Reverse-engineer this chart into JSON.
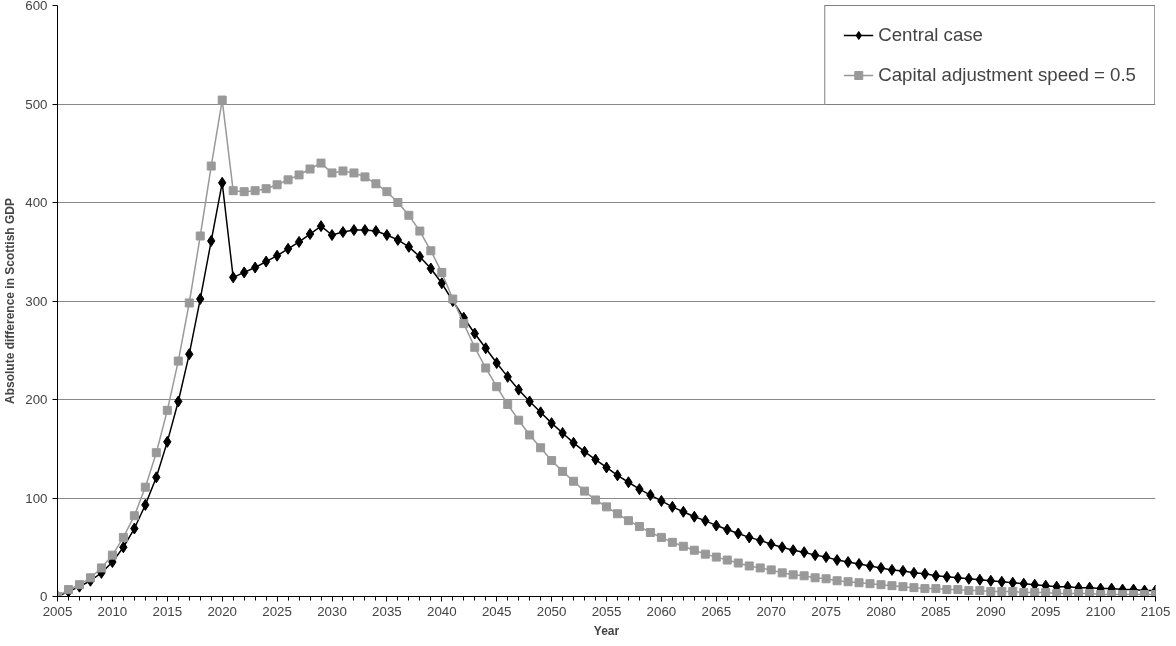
{
  "chart_data": {
    "type": "line",
    "xlabel": "Year",
    "ylabel": "Absolute difference in Scottish GDP",
    "x": [
      2005,
      2006,
      2007,
      2008,
      2009,
      2010,
      2011,
      2012,
      2013,
      2014,
      2015,
      2016,
      2017,
      2018,
      2019,
      2020,
      2021,
      2022,
      2023,
      2024,
      2025,
      2026,
      2027,
      2028,
      2029,
      2030,
      2031,
      2032,
      2033,
      2034,
      2035,
      2036,
      2037,
      2038,
      2039,
      2040,
      2041,
      2042,
      2043,
      2044,
      2045,
      2046,
      2047,
      2048,
      2049,
      2050,
      2051,
      2052,
      2053,
      2054,
      2055,
      2056,
      2057,
      2058,
      2059,
      2060,
      2061,
      2062,
      2063,
      2064,
      2065,
      2066,
      2067,
      2068,
      2069,
      2070,
      2071,
      2072,
      2073,
      2074,
      2075,
      2076,
      2077,
      2078,
      2079,
      2080,
      2081,
      2082,
      2083,
      2084,
      2085,
      2086,
      2087,
      2088,
      2089,
      2090,
      2091,
      2092,
      2093,
      2094,
      2095,
      2096,
      2097,
      2098,
      2099,
      2100,
      2101,
      2102,
      2103,
      2104,
      2105
    ],
    "series": [
      {
        "name": "Central case",
        "color": "#000000",
        "marker": "diamond",
        "values": [
          0,
          5,
          10,
          16,
          24,
          35,
          50,
          69,
          93,
          121,
          157,
          198,
          246,
          302,
          361,
          420,
          324,
          329,
          334,
          340,
          346,
          353,
          360,
          368,
          376,
          367,
          370,
          372,
          372,
          371,
          367,
          362,
          355,
          345,
          333,
          318,
          300,
          283,
          267,
          252,
          237,
          223,
          210,
          198,
          187,
          176,
          166,
          156,
          147,
          139,
          131,
          123,
          116,
          109,
          103,
          97,
          91,
          86,
          81,
          77,
          72,
          68,
          64,
          60,
          57,
          53,
          50,
          47,
          45,
          42,
          40,
          37,
          35,
          33,
          31,
          29,
          27,
          26,
          24,
          23,
          21,
          20,
          19,
          18,
          17,
          16,
          15,
          14,
          13,
          12,
          11,
          10,
          10,
          9,
          9,
          8,
          8,
          7,
          7,
          6,
          6
        ]
      },
      {
        "name": "Capital adjustment speed = 0.5",
        "color": "#999999",
        "marker": "square",
        "values": [
          0,
          7,
          12,
          19,
          29,
          42,
          60,
          82,
          111,
          146,
          189,
          239,
          298,
          366,
          437,
          504,
          412,
          411,
          412,
          414,
          418,
          423,
          428,
          434,
          440,
          430,
          432,
          430,
          426,
          419,
          411,
          400,
          387,
          371,
          351,
          329,
          302,
          277,
          253,
          232,
          213,
          195,
          179,
          164,
          151,
          138,
          127,
          117,
          107,
          98,
          91,
          84,
          77,
          71,
          65,
          60,
          55,
          51,
          47,
          43,
          40,
          37,
          34,
          31,
          29,
          27,
          24,
          22,
          21,
          19,
          18,
          16,
          15,
          14,
          13,
          12,
          11,
          10,
          9,
          8,
          8,
          7,
          7,
          6,
          6,
          5,
          5,
          5,
          4,
          4,
          4,
          3,
          3,
          3,
          3,
          2,
          2,
          2,
          2,
          2,
          2
        ]
      }
    ],
    "xlim": [
      2005,
      2105
    ],
    "xticks": [
      2005,
      2010,
      2015,
      2020,
      2025,
      2030,
      2035,
      2040,
      2045,
      2050,
      2055,
      2060,
      2065,
      2070,
      2075,
      2080,
      2085,
      2090,
      2095,
      2100,
      2105
    ],
    "ylim": [
      0,
      600
    ],
    "yticks": [
      0,
      100,
      200,
      300,
      400,
      500,
      600
    ],
    "grid": "y",
    "legend": "top right",
    "line_style": "solid"
  }
}
